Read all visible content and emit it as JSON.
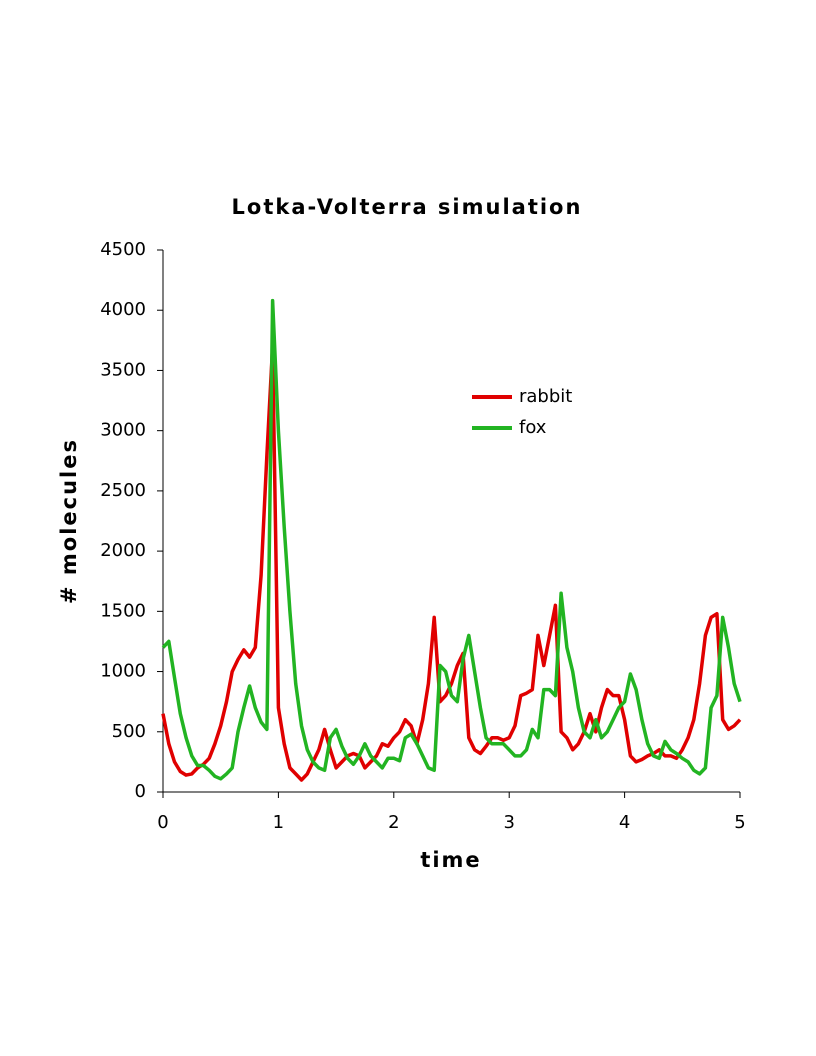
{
  "chart_data": {
    "type": "line",
    "title": "Lotka-Volterra simulation",
    "x_label": "time",
    "y_label": "# molecules",
    "x": [
      0,
      0.05,
      0.1,
      0.15,
      0.2,
      0.25,
      0.3,
      0.35,
      0.4,
      0.45,
      0.5,
      0.55,
      0.6,
      0.65,
      0.7,
      0.75,
      0.8,
      0.85,
      0.9,
      0.95,
      1,
      1.05,
      1.1,
      1.15,
      1.2,
      1.25,
      1.3,
      1.35,
      1.4,
      1.45,
      1.5,
      1.55,
      1.6,
      1.65,
      1.7,
      1.75,
      1.8,
      1.85,
      1.9,
      1.95,
      2,
      2.05,
      2.1,
      2.15,
      2.2,
      2.25,
      2.3,
      2.35,
      2.4,
      2.45,
      2.5,
      2.55,
      2.6,
      2.65,
      2.7,
      2.75,
      2.8,
      2.85,
      2.9,
      2.95,
      3,
      3.05,
      3.1,
      3.15,
      3.2,
      3.25,
      3.3,
      3.35,
      3.4,
      3.45,
      3.5,
      3.55,
      3.6,
      3.65,
      3.7,
      3.75,
      3.8,
      3.85,
      3.9,
      3.95,
      4,
      4.05,
      4.1,
      4.15,
      4.2,
      4.25,
      4.3,
      4.35,
      4.4,
      4.45,
      4.5,
      4.55,
      4.6,
      4.65,
      4.7,
      4.75,
      4.8,
      4.85,
      4.9,
      4.95,
      5
    ],
    "series": [
      {
        "name": "rabbit",
        "color": "#e00000",
        "values": [
          650,
          400,
          250,
          170,
          140,
          150,
          200,
          230,
          280,
          400,
          550,
          750,
          1000,
          1100,
          1180,
          1120,
          1200,
          1800,
          2800,
          3700,
          700,
          400,
          200,
          150,
          100,
          150,
          250,
          350,
          520,
          350,
          200,
          250,
          300,
          320,
          300,
          200,
          250,
          300,
          400,
          380,
          450,
          500,
          600,
          550,
          400,
          600,
          900,
          1450,
          750,
          800,
          900,
          1050,
          1150,
          450,
          350,
          320,
          380,
          450,
          450,
          430,
          450,
          550,
          800,
          820,
          850,
          1300,
          1050,
          1300,
          1550,
          500,
          450,
          350,
          400,
          500,
          650,
          500,
          700,
          850,
          800,
          800,
          600,
          300,
          250,
          270,
          300,
          320,
          350,
          300,
          300,
          280,
          350,
          450,
          600,
          900,
          1300,
          1450,
          1480,
          600,
          520,
          550,
          600
        ]
      },
      {
        "name": "fox",
        "color": "#22b422",
        "values": [
          1200,
          1250,
          950,
          650,
          450,
          300,
          220,
          220,
          180,
          130,
          110,
          150,
          200,
          500,
          700,
          880,
          700,
          580,
          520,
          4080,
          3000,
          2200,
          1500,
          900,
          550,
          350,
          250,
          200,
          180,
          450,
          520,
          380,
          280,
          230,
          300,
          400,
          300,
          250,
          200,
          280,
          280,
          260,
          450,
          480,
          400,
          300,
          200,
          180,
          1050,
          1000,
          800,
          750,
          1100,
          1300,
          1000,
          700,
          450,
          400,
          400,
          400,
          350,
          300,
          300,
          350,
          520,
          450,
          850,
          850,
          800,
          1650,
          1200,
          1000,
          700,
          500,
          450,
          600,
          450,
          500,
          600,
          700,
          750,
          980,
          850,
          600,
          400,
          300,
          280,
          420,
          350,
          320,
          280,
          250,
          180,
          150,
          200,
          700,
          800,
          1450,
          1200,
          900,
          750
        ]
      }
    ],
    "xlim": [
      0,
      5
    ],
    "xticks": [
      0,
      1,
      2,
      3,
      4,
      5
    ],
    "ylim": [
      0,
      4500
    ],
    "yticks": [
      0,
      500,
      1000,
      1500,
      2000,
      2500,
      3000,
      3500,
      4000,
      4500
    ],
    "grid": false,
    "legend": "upper right"
  }
}
